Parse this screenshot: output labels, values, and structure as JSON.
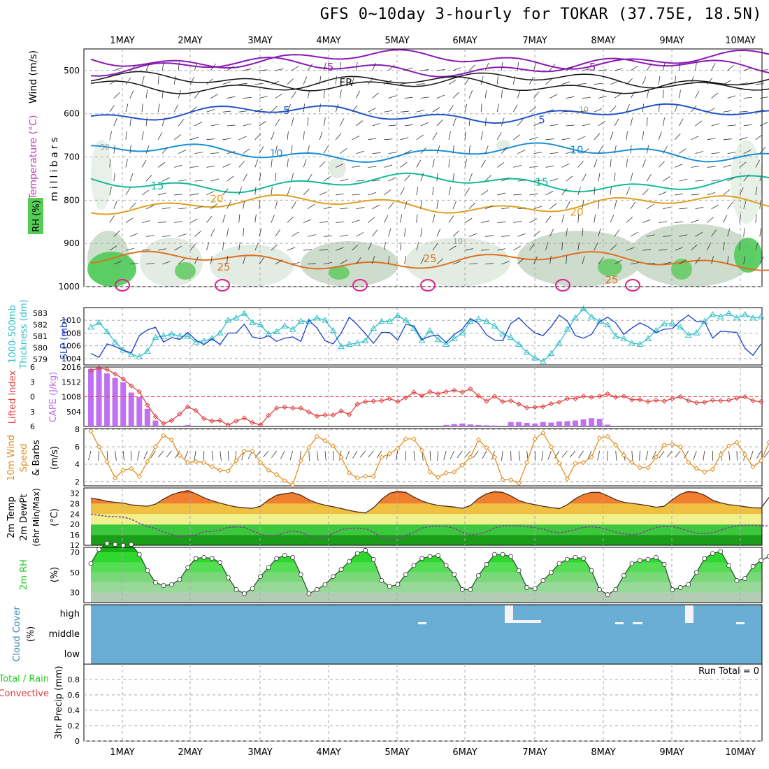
{
  "title": "GFS 0~10day 3-hourly for TOKAR (37.75E, 18.5N)",
  "colors": {
    "temp_m5": "#8a1ab5",
    "freezing": "#111111",
    "temp_5": "#2255cc",
    "temp_10": "#1a90d8",
    "temp_15": "#15b89a",
    "temp_20": "#e0a020",
    "temp_25": "#e07020",
    "temp_30": "#e0208a",
    "slp": "#1a3fc8",
    "thickness": "#30c0c8",
    "lifted_index": "#e04040",
    "cape": "#c070f0",
    "wind10m": "#e09020",
    "temp2m": "#503020",
    "dewpt2m": "#8a3a9a",
    "rh2m": "#22cc22",
    "cloud": "#6aaed6",
    "grid": "#aaaaaa"
  },
  "chart_data": [
    {
      "type": "contour",
      "panel": "upper-air",
      "y_axis_label": "millibars",
      "y_ticks": [
        500,
        600,
        700,
        800,
        900,
        1000
      ],
      "ylim": [
        450,
        1000
      ],
      "side_labels": [
        "Wind (m/s)",
        "Temperature (°C)",
        "RH (%)"
      ],
      "x_ticks": [
        "1MAY",
        "2MAY",
        "3MAY",
        "4MAY",
        "5MAY",
        "6MAY",
        "7MAY",
        "8MAY",
        "9MAY",
        "10MAY"
      ],
      "contour_labels": [
        {
          "level": "-5",
          "value": "-5",
          "approx_mb": 492
        },
        {
          "level": "-5",
          "value": "-5",
          "approx_mb": 492
        },
        {
          "level": "freezing",
          "value": "FR",
          "approx_mb": 528
        },
        {
          "level": "5",
          "value": "5",
          "approx_mb": 592
        },
        {
          "level": "5",
          "value": "5",
          "approx_mb": 614
        },
        {
          "level": "10",
          "value": "10",
          "approx_mb": 692
        },
        {
          "level": "10",
          "value": "10",
          "approx_mb": 684
        },
        {
          "level": "15",
          "value": "15",
          "approx_mb": 767
        },
        {
          "level": "15",
          "value": "15",
          "approx_mb": 758
        },
        {
          "level": "20",
          "value": "20",
          "approx_mb": 828
        },
        {
          "level": "20",
          "value": "20",
          "approx_mb": 797
        },
        {
          "level": "25",
          "value": "25",
          "approx_mb": 955
        },
        {
          "level": "25",
          "value": "25",
          "approx_mb": 935
        },
        {
          "level": "25",
          "value": "25",
          "approx_mb": 985
        },
        {
          "level": "rh",
          "value": "10",
          "approx_mb": 893
        },
        {
          "level": "rh",
          "value": "30",
          "approx_mb": 675
        },
        {
          "level": "rh",
          "value": "10",
          "approx_mb": 588
        }
      ]
    },
    {
      "type": "line",
      "panel": "slp-thickness",
      "series": [
        {
          "name": "SLP (mb)",
          "values": [
            1004.8,
            1004.2,
            1006.3,
            1005.9,
            1005.3,
            1004.9,
            1007.6,
            1008.5,
            1008.9,
            1006.6,
            1007.3,
            1007.0,
            1008.1,
            1006.9,
            1006.2,
            1007.1,
            1006.2,
            1008.0,
            1008.0,
            1009.4,
            1007.4,
            1007.1,
            1007.6,
            1006.7,
            1007.2,
            1007.4,
            1006.7,
            1010.0,
            1008.8,
            1006.8,
            1006.3,
            1008.0,
            1010.5,
            1009.3,
            1007.9,
            1006.4,
            1008.1,
            1008.1,
            1006.9,
            1009.4,
            1009.1,
            1007.0,
            1007.5,
            1007.7,
            1006.5,
            1007.8,
            1008.6,
            1010.3,
            1009.5,
            1007.7,
            1006.9,
            1006.8,
            1009.5,
            1010.4,
            1009.1,
            1008.0,
            1007.6,
            1009.0,
            1010.8,
            1009.9,
            1007.6,
            1007.2,
            1007.8,
            1009.8,
            1010.5,
            1009.6,
            1007.8,
            1008.8,
            1009.6,
            1009.0,
            1008.1,
            1008.6,
            1008.7,
            1009.9,
            1010.8,
            1009.8,
            1009.8,
            1007.2,
            1008.3,
            1008.2,
            1008.1,
            1005.6,
            1004.5,
            1006.3
          ],
          "ylim": [
            1003,
            1012
          ],
          "y_ticks": [
            1004,
            1006,
            1008,
            1010
          ]
        },
        {
          "name": "1000-500mb Thickness (dm)",
          "values": [
            581.8,
            582.2,
            581.4,
            580.5,
            579.8,
            579.4,
            579.2,
            579.7,
            580.9,
            581.0,
            581.2,
            581.0,
            581.0,
            580.5,
            580.6,
            580.8,
            581.3,
            582.4,
            582.6,
            583.0,
            582.2,
            582.0,
            581.2,
            581.4,
            581.9,
            581.6,
            582.3,
            582.3,
            582.6,
            582.4,
            581.5,
            580.1,
            580.3,
            580.4,
            580.6,
            581.7,
            582.3,
            582.3,
            582.8,
            582.4,
            581.7,
            580.6,
            581.5,
            580.7,
            580.3,
            580.8,
            581.3,
            582.3,
            582.5,
            582.3,
            581.9,
            581.2,
            580.9,
            580.3,
            579.6,
            579.1,
            578.8,
            579.5,
            580.4,
            581.6,
            582.6,
            583.4,
            582.7,
            582.3,
            582.0,
            581.0,
            580.8,
            580.4,
            580.3,
            580.8,
            581.5,
            582.1,
            582.1,
            581.8,
            581.1,
            581.3,
            582.3,
            582.9,
            582.7,
            583.0,
            582.6,
            582.9,
            582.6,
            582.7
          ],
          "ylim": [
            578.5,
            583.5
          ],
          "y_ticks": [
            579,
            580,
            581,
            582,
            583
          ]
        }
      ]
    },
    {
      "type": "bar+line",
      "panel": "cape-lifted-index",
      "series": [
        {
          "name": "CAPE (J/kg)",
          "values": [
            1950,
            2000,
            1800,
            1650,
            1500,
            1150,
            1000,
            600,
            200,
            0,
            0,
            0,
            50,
            0,
            0,
            0,
            0,
            0,
            0,
            0,
            0,
            0,
            0,
            0,
            0,
            0,
            0,
            0,
            0,
            0,
            0,
            0,
            0,
            0,
            0,
            0,
            0,
            0,
            0,
            0,
            0,
            0,
            0,
            0,
            50,
            80,
            100,
            70,
            50,
            40,
            30,
            0,
            150,
            150,
            120,
            100,
            150,
            130,
            170,
            180,
            200,
            240,
            280,
            260,
            60,
            0,
            0,
            0,
            0,
            0,
            0,
            0,
            0,
            0,
            0,
            0,
            0,
            0,
            0,
            0,
            0,
            0,
            0,
            0
          ],
          "ylim": [
            0,
            2016
          ],
          "y_ticks": [
            504,
            1008,
            1512,
            2016
          ]
        },
        {
          "name": "Lifted Index",
          "values": [
            -5.3,
            -5.8,
            -5.5,
            -4.6,
            -3.6,
            -2.2,
            -1.0,
            1.7,
            4.0,
            5.4,
            4.8,
            3.5,
            2.0,
            2.8,
            4.4,
            4.9,
            4.8,
            5.7,
            4.9,
            4.3,
            5.2,
            5.7,
            3.8,
            2.3,
            2.1,
            2.3,
            2.3,
            3.1,
            3.9,
            3.7,
            3.7,
            2.9,
            3.6,
            1.5,
            1.0,
            0.9,
            0.8,
            0.4,
            1.0,
            0.2,
            -0.9,
            -0.2,
            -1.0,
            -0.6,
            -1.0,
            -1.3,
            -0.9,
            -1.6,
            -0.2,
            0.9,
            -0.1,
            1.0,
            0.8,
            1.5,
            2.2,
            2.1,
            2.0,
            1.4,
            1.1,
            0.4,
            0.4,
            -0.1,
            0.1,
            -0.1,
            -0.6,
            0.1,
            -0.1,
            0.6,
            0.6,
            1.0,
            0.7,
            0.9,
            0.4,
            0.0,
            0.8,
            1.2,
            1.1,
            0.7,
            0.8,
            0.7,
            0.3,
            0.0,
            0.8,
            1.0
          ],
          "ylim": [
            6,
            -6
          ],
          "y_ticks": [
            -6,
            -3,
            0,
            3,
            6
          ]
        }
      ]
    },
    {
      "type": "line",
      "panel": "10m-wind",
      "series": [
        {
          "name": "10m Wind Speed (m/s)",
          "values": [
            7.8,
            6.0,
            4.3,
            2.4,
            3.3,
            3.5,
            2.6,
            4.3,
            6.0,
            7.3,
            6.8,
            5.0,
            4.2,
            4.3,
            4.2,
            3.7,
            3.3,
            3.2,
            4.4,
            5.5,
            5.5,
            4.2,
            3.3,
            2.8,
            2.1,
            1.6,
            4.4,
            5.9,
            7.2,
            6.7,
            6.1,
            4.8,
            3.0,
            2.4,
            2.6,
            2.6,
            4.8,
            5.2,
            5.8,
            6.9,
            6.9,
            5.6,
            3.1,
            2.5,
            3.0,
            3.1,
            3.9,
            4.8,
            6.8,
            5.9,
            4.8,
            2.2,
            2.2,
            1.8,
            4.2,
            6.9,
            7.6,
            6.0,
            4.1,
            2.3,
            4.1,
            4.2,
            4.8,
            7.0,
            7.2,
            6.2,
            5.0,
            4.2,
            3.6,
            3.6,
            4.8,
            6.2,
            6.3,
            6.0,
            4.2,
            3.5,
            3.1,
            3.4,
            5.1,
            6.1,
            6.5,
            5.1,
            3.7,
            4.4,
            6.5
          ],
          "ylim": [
            1.5,
            8.1
          ],
          "y_ticks": [
            2,
            4,
            6,
            8
          ]
        }
      ]
    },
    {
      "type": "area",
      "panel": "2m-temperature",
      "series": [
        {
          "name": "2m Temp (°C)",
          "values": [
            30.1,
            29.6,
            28.9,
            28.5,
            28.2,
            27.5,
            27.2,
            27.0,
            27.8,
            29.7,
            31.4,
            32.4,
            33.0,
            31.8,
            30.3,
            29.1,
            28.2,
            27.4,
            26.7,
            26.4,
            26.2,
            27.0,
            29.4,
            31.2,
            31.8,
            32.2,
            31.2,
            29.5,
            28.2,
            27.4,
            26.8,
            26.1,
            25.4,
            24.8,
            24.4,
            26.4,
            29.6,
            32.0,
            32.7,
            32.3,
            30.5,
            29.0,
            28.0,
            27.3,
            27.0,
            26.7,
            26.2,
            27.2,
            30.0,
            31.8,
            32.6,
            32.3,
            31.0,
            29.2,
            28.2,
            27.6,
            27.0,
            26.5,
            26.1,
            27.6,
            29.9,
            31.5,
            32.3,
            32.3,
            31.0,
            29.5,
            28.5,
            28.1,
            27.7,
            27.2,
            26.6,
            27.0,
            29.5,
            31.6,
            32.7,
            32.3,
            31.2,
            29.3,
            28.3,
            27.6,
            27.3,
            26.8,
            26.4,
            26.3,
            30.4
          ],
          "ylim": [
            12,
            34
          ],
          "y_ticks": [
            12,
            16,
            20,
            24,
            28,
            32
          ]
        },
        {
          "name": "2m DewPt (°C)",
          "values": [
            23.9,
            23.5,
            23.1,
            23.0,
            22.8,
            22.0,
            20.5,
            19.2,
            18.5,
            17.0,
            16.2,
            15.2,
            15.8,
            16.0,
            17.2,
            17.3,
            17.8,
            18.9,
            19.0,
            18.9,
            17.5,
            16.2,
            15.5,
            15.8,
            16.8,
            17.5,
            17.0,
            15.5,
            14.8,
            15.2,
            16.5,
            18.0,
            18.5,
            18.6,
            18.4,
            17.0,
            15.0,
            14.0,
            14.8,
            15.8,
            17.0,
            18.6,
            19.2,
            19.4,
            19.3,
            18.5,
            17.0,
            16.0,
            16.3,
            17.2,
            18.6,
            19.5,
            19.6,
            19.5,
            19.2,
            18.8,
            18.2,
            17.2,
            16.8,
            17.2,
            18.0,
            18.9,
            19.1,
            18.8,
            18.0,
            17.0,
            16.5,
            16.0,
            16.5,
            17.8,
            18.9,
            19.3,
            19.2,
            18.5,
            17.5,
            16.6,
            16.5,
            16.8,
            17.8,
            18.8,
            19.5,
            19.7,
            19.7,
            19.6,
            19.4
          ],
          "ylim": [
            12,
            34
          ]
        }
      ],
      "side_labels": [
        "2m Temp",
        "2m DewPt",
        "(6hr Min/Max)",
        "(°C)"
      ]
    },
    {
      "type": "area",
      "panel": "2m-rh",
      "series": [
        {
          "name": "2m RH (%)",
          "values": [
            59,
            73,
            79,
            78,
            77,
            78,
            68,
            52,
            40,
            37,
            38,
            43,
            55,
            64,
            65,
            64,
            60,
            45,
            33,
            29,
            34,
            46,
            55,
            64,
            67,
            65,
            48,
            29,
            33,
            38,
            46,
            53,
            61,
            69,
            72,
            63,
            42,
            36,
            38,
            48,
            57,
            64,
            66,
            67,
            57,
            48,
            33,
            33,
            47,
            58,
            68,
            68,
            66,
            52,
            35,
            34,
            42,
            50,
            59,
            63,
            65,
            64,
            52,
            33,
            28,
            33,
            47,
            59,
            62,
            63,
            65,
            58,
            33,
            35,
            38,
            50,
            64,
            69,
            71,
            57,
            42,
            44,
            56,
            62,
            66,
            49
          ],
          "ylim": [
            20,
            75
          ],
          "y_ticks": [
            30,
            50,
            70
          ]
        }
      ]
    },
    {
      "type": "heatmap",
      "panel": "cloud-cover",
      "y_categories": [
        "high",
        "middle",
        "low"
      ],
      "ylabel": "Cloud Cover (%)",
      "note": "uniform blue background with small white high-level gaps near 5-6 MAY, 6-7 MAY, 8 MAY, 9 MAY, 10 MAY"
    },
    {
      "type": "bar",
      "panel": "precip",
      "ylabel": "3hr Precip (mm)",
      "legend": [
        "Total / Rain",
        "Convective"
      ],
      "run_total_label": "Run Total = 0",
      "values": [],
      "ylim": [
        0,
        1.0
      ],
      "y_ticks": [
        0,
        0.2,
        0.4,
        0.6,
        0.8
      ]
    }
  ]
}
